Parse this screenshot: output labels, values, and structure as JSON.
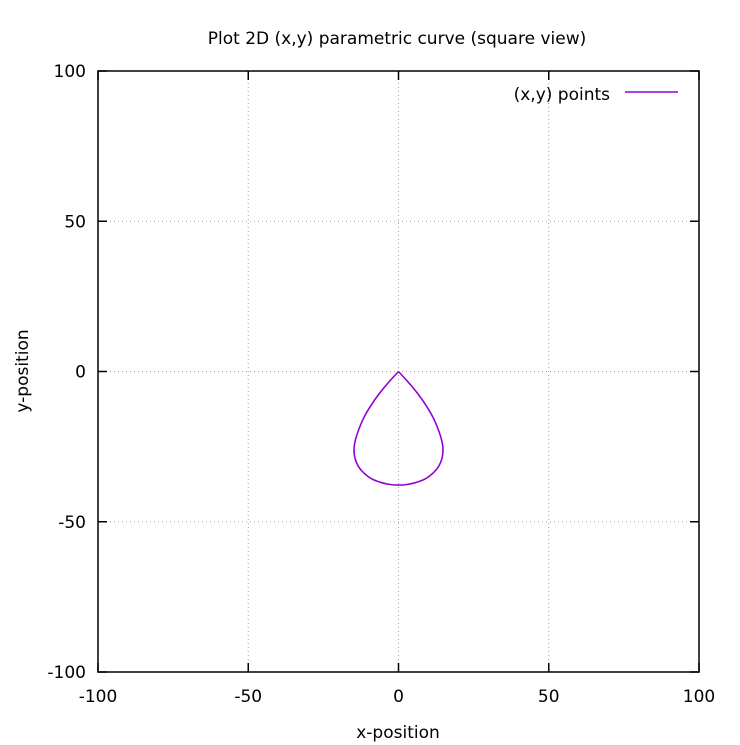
{
  "chart_data": {
    "type": "line",
    "title": "Plot 2D (x,y) parametric curve (square view)",
    "xlabel": "x-position",
    "ylabel": "y-position",
    "xlim": [
      -100,
      100
    ],
    "ylim": [
      -100,
      100
    ],
    "xticks": [
      -100,
      -50,
      0,
      50,
      100
    ],
    "yticks": [
      -100,
      -50,
      0,
      50,
      100
    ],
    "xtick_labels": [
      "-100",
      "-50",
      "0",
      "50",
      "100"
    ],
    "ytick_labels": [
      "-100",
      "-50",
      "0",
      "50",
      "100"
    ],
    "grid": true,
    "legend_position": "top-right",
    "series": [
      {
        "name": "(x,y) points",
        "color": "#9400d3",
        "x": [
          0,
          3.2,
          6.5,
          9.3,
          11.6,
          13.3,
          14.4,
          14.8,
          14.5,
          13.4,
          11.5,
          8.8,
          5.6,
          2.8,
          0,
          -2.8,
          -5.6,
          -8.8,
          -11.5,
          -13.4,
          -14.5,
          -14.8,
          -14.4,
          -13.3,
          -11.6,
          -9.3,
          -6.5,
          -3.2,
          0
        ],
        "y": [
          0,
          -3.5,
          -7.5,
          -11.5,
          -15.5,
          -19.5,
          -23,
          -26,
          -28.8,
          -31.5,
          -33.8,
          -35.8,
          -37,
          -37.6,
          -37.8,
          -37.6,
          -37,
          -35.8,
          -33.8,
          -31.5,
          -28.8,
          -26,
          -23,
          -19.5,
          -15.5,
          -11.5,
          -7.5,
          -3.5,
          0
        ]
      }
    ]
  }
}
